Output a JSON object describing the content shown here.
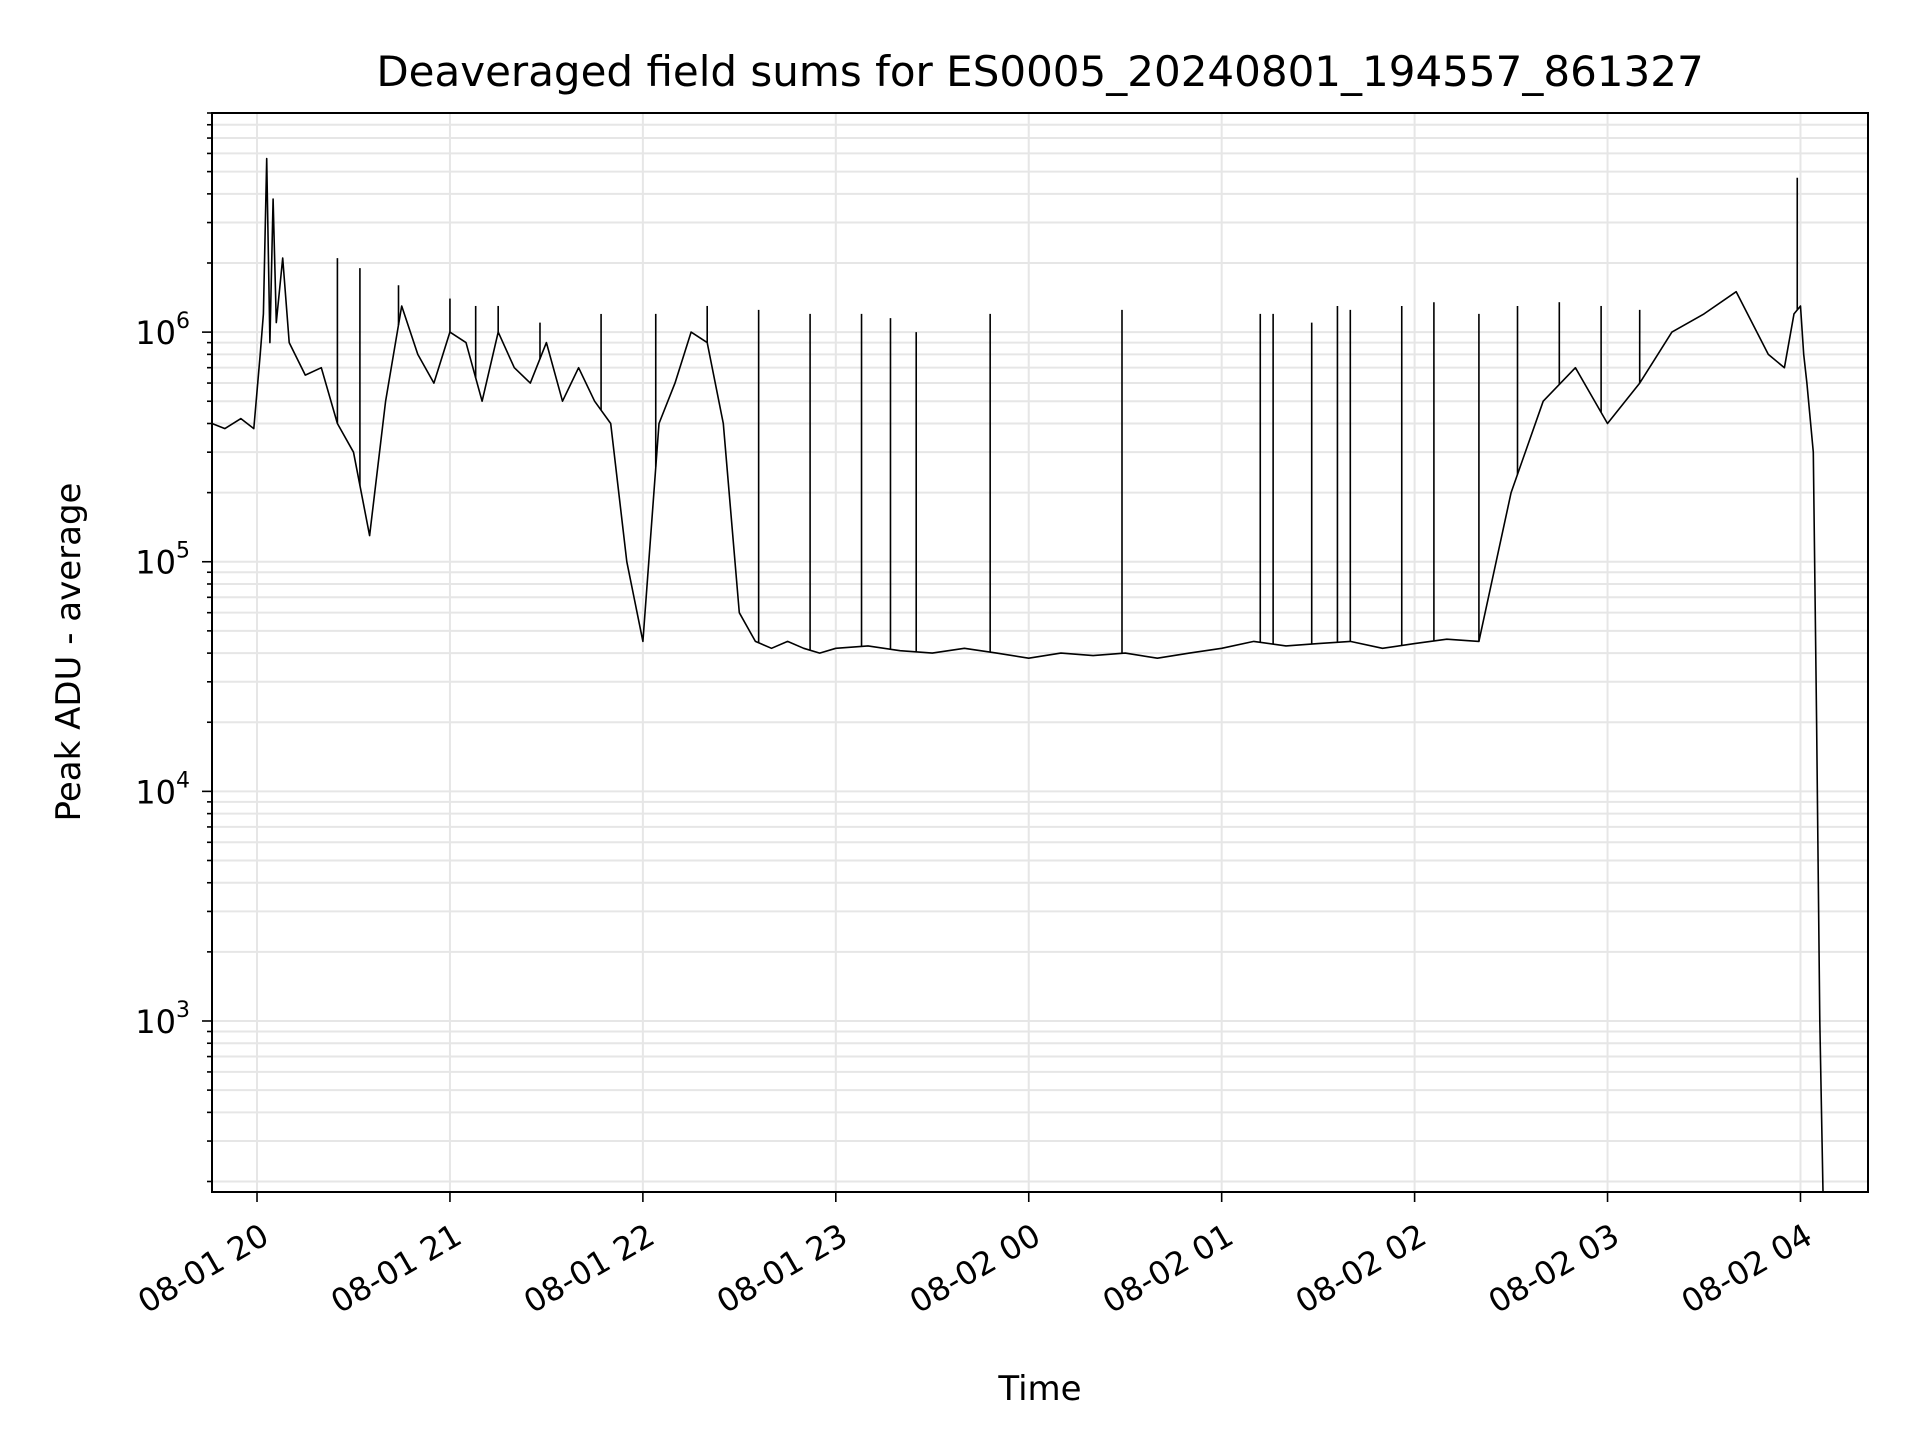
{
  "chart_data": {
    "type": "line",
    "title": "Deaveraged field sums for ES0005_20240801_194557_861327",
    "xlabel": "Time",
    "ylabel": "Peak ADU - average",
    "yscale": "log",
    "ylim": [
      180,
      9000000
    ],
    "xlim": [
      "2024-08-01 19:46",
      "2024-08-02 04:21"
    ],
    "grid": true,
    "line_color": "#000000",
    "x_ticks": [
      {
        "x": "2024-08-01 20:00",
        "label": "08-01 20"
      },
      {
        "x": "2024-08-01 21:00",
        "label": "08-01 21"
      },
      {
        "x": "2024-08-01 22:00",
        "label": "08-01 22"
      },
      {
        "x": "2024-08-01 23:00",
        "label": "08-01 23"
      },
      {
        "x": "2024-08-02 00:00",
        "label": "08-02 00"
      },
      {
        "x": "2024-08-02 01:00",
        "label": "08-02 01"
      },
      {
        "x": "2024-08-02 02:00",
        "label": "08-02 02"
      },
      {
        "x": "2024-08-02 03:00",
        "label": "08-02 03"
      },
      {
        "x": "2024-08-02 04:00",
        "label": "08-02 04"
      }
    ],
    "y_ticks": [
      {
        "value": 1000,
        "base": "10",
        "exp": "3"
      },
      {
        "value": 10000,
        "base": "10",
        "exp": "4"
      },
      {
        "value": 100000,
        "base": "10",
        "exp": "5"
      },
      {
        "value": 1000000,
        "base": "10",
        "exp": "6"
      }
    ],
    "series": [
      {
        "x": [
          "2024-08-01 19:46",
          "2024-08-01 19:50",
          "2024-08-01 19:55",
          "2024-08-01 19:59",
          "2024-08-01 20:01",
          "2024-08-01 20:02",
          "2024-08-01 20:03",
          "2024-08-01 20:04",
          "2024-08-01 20:05",
          "2024-08-01 20:06",
          "2024-08-01 20:08",
          "2024-08-01 20:10",
          "2024-08-01 20:15",
          "2024-08-01 20:20",
          "2024-08-01 20:25",
          "2024-08-01 20:30",
          "2024-08-01 20:35",
          "2024-08-01 20:40",
          "2024-08-01 20:45",
          "2024-08-01 20:50",
          "2024-08-01 20:55",
          "2024-08-01 21:00",
          "2024-08-01 21:05",
          "2024-08-01 21:10",
          "2024-08-01 21:15",
          "2024-08-01 21:20",
          "2024-08-01 21:25",
          "2024-08-01 21:30",
          "2024-08-01 21:35",
          "2024-08-01 21:40",
          "2024-08-01 21:45",
          "2024-08-01 21:50",
          "2024-08-01 21:55",
          "2024-08-01 22:00",
          "2024-08-01 22:05",
          "2024-08-01 22:10",
          "2024-08-01 22:15",
          "2024-08-01 22:20",
          "2024-08-01 22:25",
          "2024-08-01 22:30",
          "2024-08-01 22:35",
          "2024-08-01 22:40",
          "2024-08-01 22:45",
          "2024-08-01 22:50",
          "2024-08-01 22:55",
          "2024-08-01 23:00",
          "2024-08-01 23:10",
          "2024-08-01 23:20",
          "2024-08-01 23:30",
          "2024-08-01 23:40",
          "2024-08-01 23:50",
          "2024-08-02 00:00",
          "2024-08-02 00:10",
          "2024-08-02 00:20",
          "2024-08-02 00:30",
          "2024-08-02 00:40",
          "2024-08-02 00:50",
          "2024-08-02 01:00",
          "2024-08-02 01:10",
          "2024-08-02 01:20",
          "2024-08-02 01:30",
          "2024-08-02 01:40",
          "2024-08-02 01:50",
          "2024-08-02 02:00",
          "2024-08-02 02:10",
          "2024-08-02 02:20",
          "2024-08-02 02:30",
          "2024-08-02 02:40",
          "2024-08-02 02:50",
          "2024-08-02 03:00",
          "2024-08-02 03:10",
          "2024-08-02 03:20",
          "2024-08-02 03:30",
          "2024-08-02 03:40",
          "2024-08-02 03:50",
          "2024-08-02 03:55",
          "2024-08-02 03:58",
          "2024-08-02 04:00",
          "2024-08-02 04:01",
          "2024-08-02 04:02",
          "2024-08-02 04:04",
          "2024-08-02 04:05",
          "2024-08-02 04:06",
          "2024-08-02 04:07"
        ],
        "y": [
          400000,
          380000,
          420000,
          380000,
          800000,
          1200000,
          5700000,
          900000,
          3800000,
          1100000,
          2100000,
          900000,
          650000,
          700000,
          400000,
          300000,
          130000,
          500000,
          1300000,
          800000,
          600000,
          1000000,
          900000,
          500000,
          1000000,
          700000,
          600000,
          900000,
          500000,
          700000,
          500000,
          400000,
          100000,
          45000,
          400000,
          600000,
          1000000,
          900000,
          400000,
          60000,
          45000,
          42000,
          45000,
          42000,
          40000,
          42000,
          43000,
          41000,
          40000,
          42000,
          40000,
          38000,
          40000,
          39000,
          40000,
          38000,
          40000,
          42000,
          45000,
          43000,
          44000,
          45000,
          42000,
          44000,
          46000,
          45000,
          200000,
          500000,
          700000,
          400000,
          600000,
          1000000,
          1200000,
          1500000,
          800000,
          700000,
          1200000,
          1300000,
          800000,
          600000,
          300000,
          20000,
          1000,
          180
        ]
      }
    ],
    "spikes": [
      {
        "x": "2024-08-01 20:25",
        "y": 2100000
      },
      {
        "x": "2024-08-01 20:32",
        "y": 1900000
      },
      {
        "x": "2024-08-01 20:44",
        "y": 1600000
      },
      {
        "x": "2024-08-01 21:00",
        "y": 1400000
      },
      {
        "x": "2024-08-01 21:08",
        "y": 1300000
      },
      {
        "x": "2024-08-01 21:15",
        "y": 1300000
      },
      {
        "x": "2024-08-01 21:28",
        "y": 1100000
      },
      {
        "x": "2024-08-01 21:47",
        "y": 1200000
      },
      {
        "x": "2024-08-01 22:04",
        "y": 1200000
      },
      {
        "x": "2024-08-01 22:20",
        "y": 1300000
      },
      {
        "x": "2024-08-01 22:36",
        "y": 1250000
      },
      {
        "x": "2024-08-01 22:52",
        "y": 1200000
      },
      {
        "x": "2024-08-01 23:08",
        "y": 1200000
      },
      {
        "x": "2024-08-01 23:17",
        "y": 1150000
      },
      {
        "x": "2024-08-01 23:25",
        "y": 1000000
      },
      {
        "x": "2024-08-01 23:48",
        "y": 1200000
      },
      {
        "x": "2024-08-02 00:29",
        "y": 1250000
      },
      {
        "x": "2024-08-02 01:12",
        "y": 1200000
      },
      {
        "x": "2024-08-02 01:16",
        "y": 1200000
      },
      {
        "x": "2024-08-02 01:28",
        "y": 1100000
      },
      {
        "x": "2024-08-02 01:36",
        "y": 1300000
      },
      {
        "x": "2024-08-02 01:40",
        "y": 1250000
      },
      {
        "x": "2024-08-02 01:56",
        "y": 1300000
      },
      {
        "x": "2024-08-02 02:06",
        "y": 1350000
      },
      {
        "x": "2024-08-02 02:20",
        "y": 1200000
      },
      {
        "x": "2024-08-02 02:32",
        "y": 1300000
      },
      {
        "x": "2024-08-02 02:45",
        "y": 1350000
      },
      {
        "x": "2024-08-02 02:58",
        "y": 1300000
      },
      {
        "x": "2024-08-02 03:10",
        "y": 1250000
      },
      {
        "x": "2024-08-02 03:59",
        "y": 4700000
      }
    ]
  }
}
